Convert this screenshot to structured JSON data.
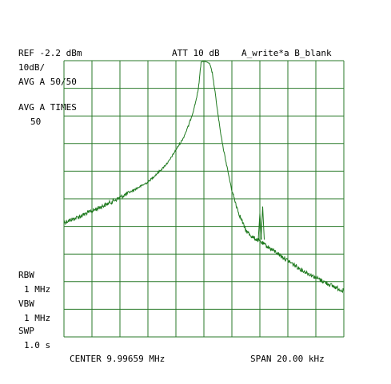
{
  "header": {
    "ref": "REF -2.2 dBm",
    "att": "ATT 10 dB",
    "trace_mode": "A_write*a B_blank"
  },
  "left_panel": {
    "scale": "10dB/",
    "avg": "AVG A 50/50",
    "avg_times_label": "AVG A TIMES",
    "avg_times_value": "50",
    "rbw_label": "RBW",
    "rbw_value": "1 MHz",
    "vbw_label": "VBW",
    "vbw_value": "1 MHz",
    "swp_label": "SWP",
    "swp_value": "1.0 s"
  },
  "footer": {
    "center": "CENTER 9.99659 MHz",
    "span": "SPAN 20.00 kHz"
  },
  "colors": {
    "grid": "#2a7a2a",
    "trace": "#1f7a1f",
    "text": "#000000"
  },
  "chart_data": {
    "type": "line",
    "title": "",
    "xlabel": "",
    "ylabel": "",
    "x_unit": "MHz",
    "y_unit": "dBm",
    "xlim": [
      9.98659,
      10.00659
    ],
    "ylim": [
      -102.2,
      -2.2
    ],
    "grid": true,
    "series": [
      {
        "x": [
          9.98659,
          9.98759,
          9.98859,
          9.98959,
          9.99059,
          9.99159,
          9.99259,
          9.99359,
          9.99409,
          9.99459,
          9.99509,
          9.99549,
          9.99579,
          9.99599,
          9.99619,
          9.99639,
          9.99659,
          9.99679,
          9.99699,
          9.99719,
          9.99739,
          9.99759,
          9.99779,
          9.99799,
          9.99829,
          9.99859,
          9.99909,
          9.99959,
          10.00009,
          10.00059,
          10.00109,
          10.00159,
          10.00259,
          10.00359,
          10.00459,
          10.00559,
          10.00659
        ],
        "y": [
          -60.7,
          -58.9,
          -56.6,
          -54.3,
          -51.8,
          -49.0,
          -46.2,
          -41.4,
          -38.6,
          -34.5,
          -30.5,
          -25.7,
          -21.2,
          -17.3,
          -12.7,
          -2.7,
          -2.2,
          -2.7,
          -3.2,
          -6.6,
          -13.7,
          -21.4,
          -28.7,
          -34.3,
          -41.9,
          -49.3,
          -57.5,
          -63.7,
          -66.2,
          -67.6,
          -69.4,
          -71.0,
          -74.6,
          -78.0,
          -80.7,
          -83.3,
          -85.6
        ]
      }
    ],
    "spurs": [
      {
        "x": 10.00059,
        "y": -57.4
      },
      {
        "x": 10.00079,
        "y": -55.0
      }
    ]
  }
}
